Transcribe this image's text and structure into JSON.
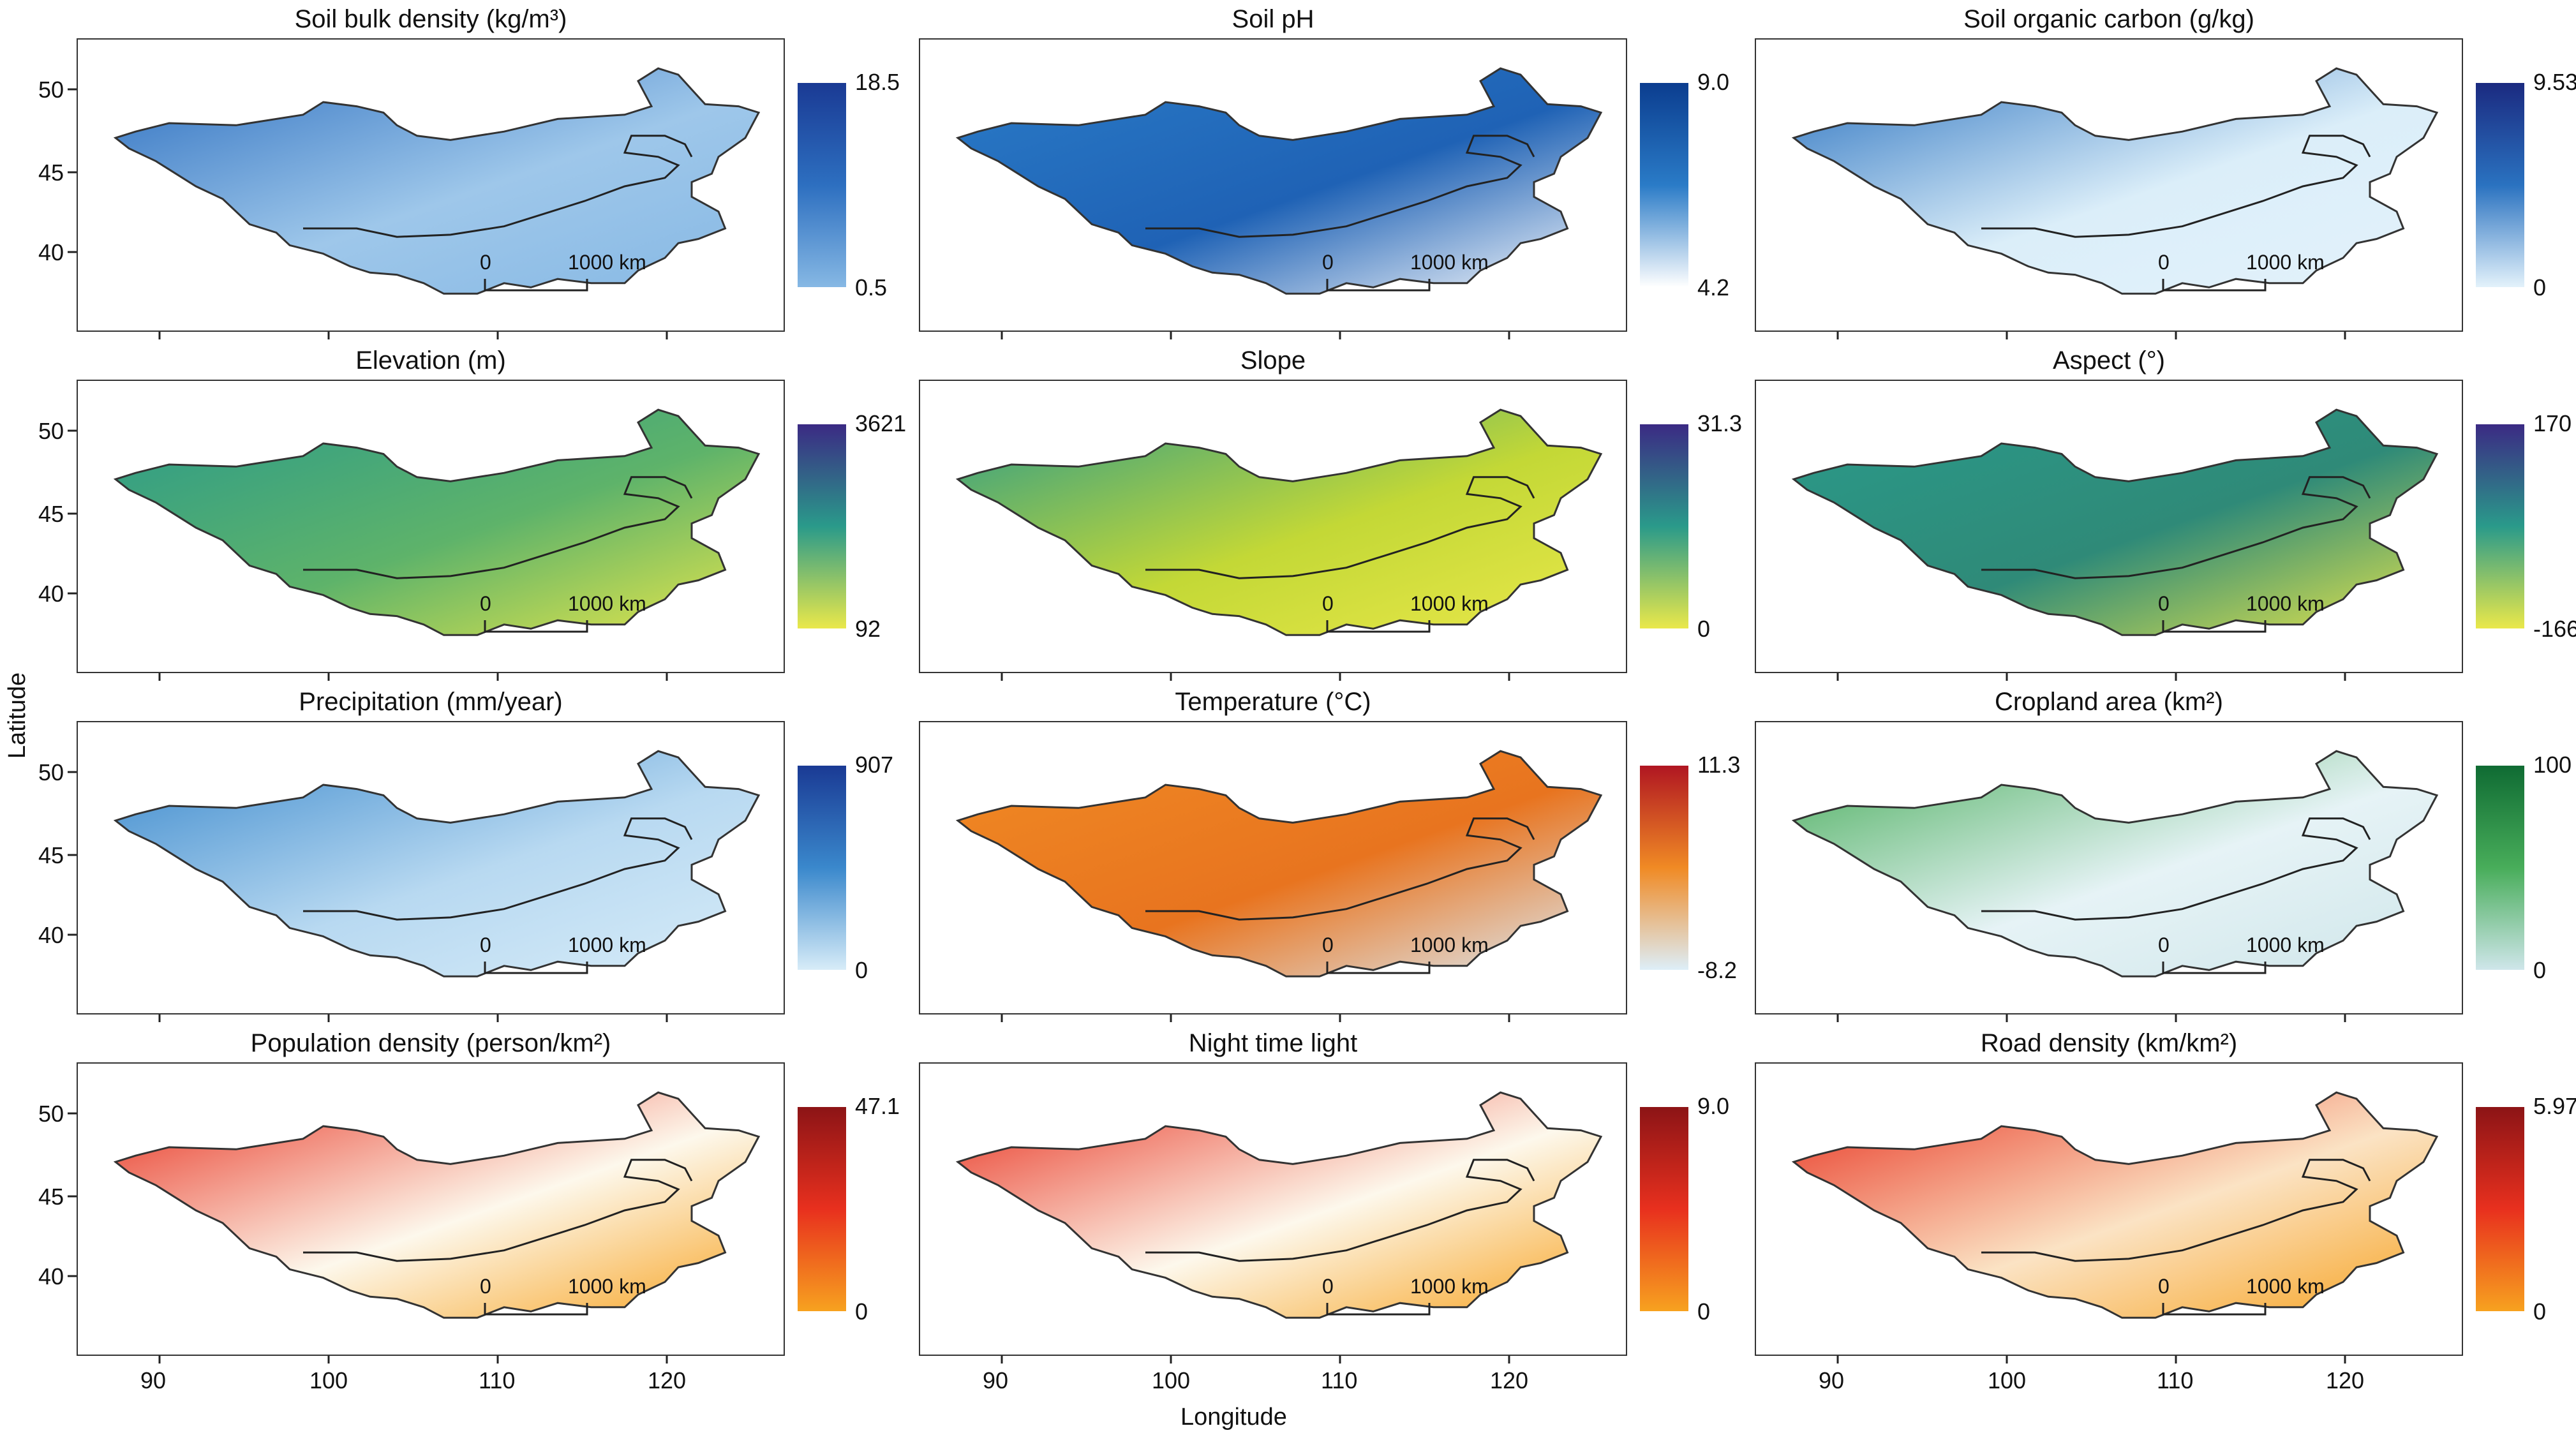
{
  "figure": {
    "y_axis_label": "Latitude",
    "x_axis_label": "Longitude",
    "lat_ticks": [
      "50",
      "45",
      "40"
    ],
    "lon_ticks": [
      "90",
      "100",
      "110",
      "120"
    ],
    "scalebar": {
      "start": "0",
      "end": "1000 km"
    }
  },
  "panels": [
    {
      "title": "Soil bulk density (kg/m³)",
      "max": "18.5",
      "min": "0.5",
      "colors": [
        "#1a3a94",
        "#2d6fc0",
        "#86b8e4"
      ],
      "fill": "#9ec7ea"
    },
    {
      "title": "Soil pH",
      "max": "9.0",
      "min": "4.2",
      "colors": [
        "#0b3d8f",
        "#2a7bc7",
        "#ffffff"
      ],
      "fill": "#1f62b5"
    },
    {
      "title": "Soil organic carbon (g/kg)",
      "max": "9.53",
      "min": "0",
      "colors": [
        "#1b2a80",
        "#2a72c0",
        "#e3f2fb"
      ],
      "fill": "#dbeef9"
    },
    {
      "title": "Elevation (m)",
      "max": "3621",
      "min": "92",
      "colors": [
        "#3b2a84",
        "#2a9a8a",
        "#eae84a"
      ],
      "fill": "#5eb36a"
    },
    {
      "title": "Slope",
      "max": "31.3",
      "min": "0",
      "colors": [
        "#3b2a84",
        "#2a9a8a",
        "#eae84a"
      ],
      "fill": "#c3d836"
    },
    {
      "title": "Aspect (°)",
      "max": "170",
      "min": "-166",
      "colors": [
        "#3b2a84",
        "#2a9a8a",
        "#eae84a"
      ],
      "fill": "#2f8a78"
    },
    {
      "title": "Precipitation (mm/year)",
      "max": "907",
      "min": "0",
      "colors": [
        "#1a3a94",
        "#3a88cc",
        "#d7ecf8"
      ],
      "fill": "#b8d9f1"
    },
    {
      "title": "Temperature (°C)",
      "max": "11.3",
      "min": "-8.2",
      "colors": [
        "#b01622",
        "#f08a24",
        "#ddeef8"
      ],
      "fill": "#e8741f"
    },
    {
      "title": "Cropland area (km²)",
      "max": "100",
      "min": "0",
      "colors": [
        "#0f6b33",
        "#48ad5a",
        "#cfe6ea"
      ],
      "fill": "#e6f3f6"
    },
    {
      "title": "Population density (person/km²)",
      "max": "47.1",
      "min": "0",
      "colors": [
        "#8c1416",
        "#e8301e",
        "#f7a21f"
      ],
      "fill": "#fdf8ec"
    },
    {
      "title": "Night time light",
      "max": "9.0",
      "min": "0",
      "colors": [
        "#8c1416",
        "#e8301e",
        "#f7a21f"
      ],
      "fill": "#fdf8ec"
    },
    {
      "title": "Road density (km/km²)",
      "max": "5.97",
      "min": "0",
      "colors": [
        "#8c1416",
        "#e8301e",
        "#f7a21f"
      ],
      "fill": "#fbe3c4"
    }
  ]
}
